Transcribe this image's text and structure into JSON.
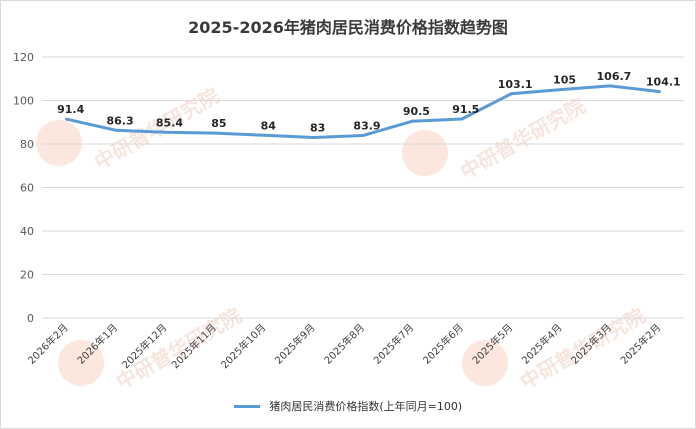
{
  "watermark": "中研普华研究院",
  "chart_data": {
    "type": "line",
    "title": "2025-2026年猪肉居民消费价格指数趋势图",
    "categories": [
      "2026年2月",
      "2026年1月",
      "2025年12月",
      "2025年11月",
      "2025年10月",
      "2025年9月",
      "2025年8月",
      "2025年7月",
      "2025年6月",
      "2025年5月",
      "2025年4月",
      "2025年3月",
      "2025年2月"
    ],
    "series": [
      {
        "name": "猪肉居民消费价格指数(上年同月=100)",
        "values": [
          91.4,
          86.3,
          85.4,
          85,
          84,
          83,
          83.9,
          90.5,
          91.5,
          103.1,
          105,
          106.7,
          104.1
        ],
        "labels": [
          "91.4",
          "86.3",
          "85.4",
          "85",
          "84",
          "83",
          "83.9",
          "90.5",
          "91.5",
          "103.1",
          "105",
          "106.7",
          "104.1"
        ],
        "color": "#5b9bd5"
      }
    ],
    "ylim": [
      0,
      120
    ],
    "yticks": [
      "0",
      "20",
      "40",
      "60",
      "80",
      "100",
      "120"
    ],
    "grid": true,
    "legend": "bottom"
  }
}
